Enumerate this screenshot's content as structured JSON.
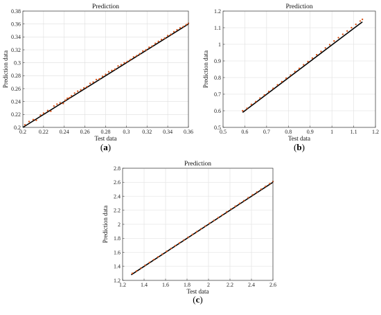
{
  "chart_data": [
    {
      "type": "scatter",
      "title": "Prediction",
      "xlabel": "Test data",
      "ylabel": "Prediction data",
      "panel_label": "a",
      "xlim": [
        0.2,
        0.36
      ],
      "ylim": [
        0.2,
        0.38
      ],
      "xticks": [
        "0.2",
        "0.22",
        "0.24",
        "0.26",
        "0.28",
        "0.3",
        "0.32",
        "0.34",
        "0.36"
      ],
      "yticks": [
        "0.2",
        "0.22",
        "0.24",
        "0.26",
        "0.28",
        "0.3",
        "0.32",
        "0.34",
        "0.36",
        "0.38"
      ],
      "grid": true,
      "series": [
        {
          "role": "fit-line",
          "color": "#000000",
          "x": [
            0.2,
            0.36
          ],
          "y": [
            0.2,
            0.36
          ]
        },
        {
          "role": "points",
          "color": "#d9541a",
          "x": [
            0.202,
            0.206,
            0.21,
            0.213,
            0.217,
            0.22,
            0.224,
            0.227,
            0.23,
            0.233,
            0.236,
            0.239,
            0.241,
            0.243,
            0.245,
            0.247,
            0.25,
            0.253,
            0.256,
            0.259,
            0.262,
            0.265,
            0.268,
            0.271,
            0.274,
            0.277,
            0.28,
            0.283,
            0.286,
            0.289,
            0.292,
            0.295,
            0.298,
            0.301,
            0.304,
            0.307,
            0.31,
            0.313,
            0.316,
            0.319,
            0.322,
            0.325,
            0.328,
            0.331,
            0.334,
            0.337,
            0.34,
            0.343,
            0.346,
            0.349,
            0.352,
            0.355,
            0.358,
            0.36
          ],
          "y": [
            0.204,
            0.209,
            0.212,
            0.211,
            0.219,
            0.222,
            0.226,
            0.225,
            0.233,
            0.236,
            0.238,
            0.237,
            0.242,
            0.245,
            0.246,
            0.249,
            0.253,
            0.256,
            0.258,
            0.261,
            0.263,
            0.268,
            0.27,
            0.274,
            0.275,
            0.279,
            0.282,
            0.286,
            0.288,
            0.29,
            0.295,
            0.297,
            0.3,
            0.302,
            0.305,
            0.309,
            0.311,
            0.314,
            0.318,
            0.32,
            0.324,
            0.326,
            0.33,
            0.333,
            0.336,
            0.338,
            0.342,
            0.344,
            0.348,
            0.351,
            0.354,
            0.356,
            0.359,
            0.361
          ]
        }
      ]
    },
    {
      "type": "scatter",
      "title": "Prediction",
      "xlabel": "Test data",
      "ylabel": "Prediction data",
      "panel_label": "b",
      "xlim": [
        0.5,
        1.2
      ],
      "ylim": [
        0.5,
        1.2
      ],
      "xticks": [
        "0.5",
        "0.6",
        "0.7",
        "0.8",
        "0.9",
        "1",
        "1.1",
        "1.2"
      ],
      "yticks": [
        "0.5",
        "0.6",
        "0.7",
        "0.8",
        "0.9",
        "1",
        "1.1",
        "1.2"
      ],
      "grid": true,
      "series": [
        {
          "role": "fit-line",
          "color": "#000000",
          "x": [
            0.59,
            1.14
          ],
          "y": [
            0.59,
            1.135
          ]
        },
        {
          "role": "points",
          "color": "#d9541a",
          "x": [
            0.59,
            0.61,
            0.63,
            0.65,
            0.67,
            0.69,
            0.71,
            0.73,
            0.75,
            0.77,
            0.79,
            0.81,
            0.83,
            0.85,
            0.87,
            0.89,
            0.91,
            0.93,
            0.95,
            0.97,
            0.99,
            1.01,
            1.03,
            1.05,
            1.07,
            1.09,
            1.11,
            1.13,
            1.14
          ],
          "y": [
            0.6,
            0.615,
            0.638,
            0.655,
            0.676,
            0.695,
            0.716,
            0.735,
            0.756,
            0.775,
            0.796,
            0.815,
            0.836,
            0.855,
            0.877,
            0.896,
            0.917,
            0.937,
            0.957,
            0.978,
            0.998,
            1.02,
            1.04,
            1.06,
            1.08,
            1.1,
            1.12,
            1.14,
            1.15
          ]
        }
      ]
    },
    {
      "type": "scatter",
      "title": "Prediction",
      "xlabel": "Test data",
      "ylabel": "Prediction data",
      "panel_label": "c",
      "xlim": [
        1.2,
        2.6
      ],
      "ylim": [
        1.2,
        2.8
      ],
      "xticks": [
        "1.2",
        "1.4",
        "1.6",
        "1.8",
        "2",
        "2.2",
        "2.4",
        "2.6"
      ],
      "yticks": [
        "1.2",
        "1.4",
        "1.6",
        "1.8",
        "2",
        "2.2",
        "2.4",
        "2.6",
        "2.8"
      ],
      "grid": true,
      "series": [
        {
          "role": "fit-line",
          "color": "#000000",
          "x": [
            1.28,
            2.6
          ],
          "y": [
            1.28,
            2.6
          ]
        },
        {
          "role": "points",
          "color": "#d9541a",
          "x": [
            1.29,
            1.33,
            1.37,
            1.41,
            1.45,
            1.49,
            1.53,
            1.57,
            1.61,
            1.65,
            1.69,
            1.73,
            1.77,
            1.81,
            1.85,
            1.89,
            1.93,
            1.97,
            2.01,
            2.05,
            2.09,
            2.13,
            2.17,
            2.21,
            2.25,
            2.29,
            2.33,
            2.37,
            2.41,
            2.45,
            2.49,
            2.53,
            2.57,
            2.6
          ],
          "y": [
            1.3,
            1.335,
            1.375,
            1.415,
            1.455,
            1.495,
            1.535,
            1.575,
            1.615,
            1.655,
            1.695,
            1.735,
            1.775,
            1.815,
            1.855,
            1.895,
            1.935,
            1.975,
            2.015,
            2.055,
            2.095,
            2.135,
            2.178,
            2.218,
            2.258,
            2.298,
            2.338,
            2.38,
            2.42,
            2.46,
            2.5,
            2.54,
            2.58,
            2.61
          ]
        }
      ]
    }
  ]
}
